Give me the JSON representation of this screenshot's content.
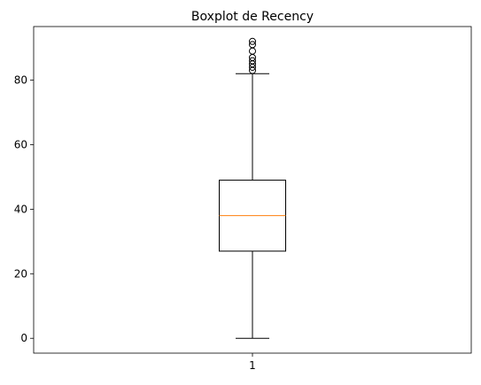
{
  "chart_data": {
    "type": "boxplot",
    "title": "Boxplot de Recency",
    "xlabel": "",
    "ylabel": "",
    "categories": [
      "1"
    ],
    "x_ticks": [
      "1"
    ],
    "y_ticks": [
      0,
      20,
      40,
      60,
      80
    ],
    "ylim": [
      -4.6,
      96.6
    ],
    "grid": false,
    "boxes": [
      {
        "label": "1",
        "whisker_low": 0,
        "q1": 27,
        "median": 38,
        "q3": 49,
        "whisker_high": 82,
        "outliers": [
          83,
          84,
          85,
          86,
          87,
          89,
          91,
          92
        ]
      }
    ],
    "colors": {
      "box": "#000000",
      "median": "#ff7f0e",
      "axes": "#000000",
      "background": "#ffffff"
    }
  }
}
